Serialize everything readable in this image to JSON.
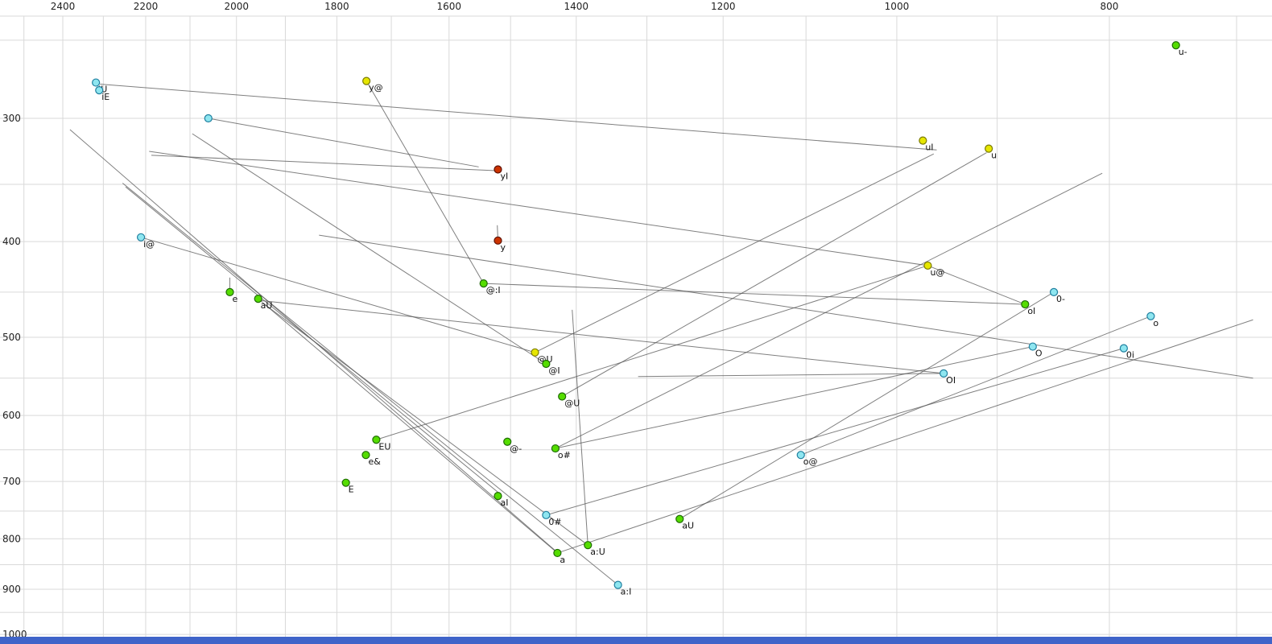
{
  "chart_data": {
    "type": "scatter",
    "title": "",
    "description": "Vowel formant plot (F2 horizontal reversed log scale, F1 vertical reversed log scale) with diphthong trajectory lines",
    "x_axis": {
      "unit": "Hz",
      "scale": "log",
      "reversed": true,
      "ticks": [
        2400,
        2200,
        2000,
        1800,
        1600,
        1400,
        1200,
        1000,
        800
      ],
      "minor_step": 100,
      "minor_min": 700,
      "minor_max": 2500
    },
    "y_axis": {
      "unit": "Hz",
      "scale": "log",
      "reversed": true,
      "ticks": [
        300,
        400,
        500,
        600,
        700,
        800,
        900,
        1000
      ],
      "minor_step": 50,
      "minor_min": 250,
      "minor_max": 1000
    },
    "colors": {
      "green": {
        "fill": "#55dd00",
        "stroke": "#1e6b00"
      },
      "yellow": {
        "fill": "#e6e600",
        "stroke": "#7a7a00"
      },
      "cyan": {
        "fill": "#8ee6f0",
        "stroke": "#1f7f9f"
      },
      "red": {
        "fill": "#cc3300",
        "stroke": "#5c1000"
      }
    },
    "grid_color": "#d9d9d9",
    "line_color": "#555555",
    "label_color": "#111111",
    "tick_color": "#222222",
    "bottom_bar_color": "#3f64c9",
    "points": [
      {
        "label": "u-",
        "f2": 746,
        "f1": 253,
        "color": "green"
      },
      {
        "label": "iU",
        "f2": 2318,
        "f1": 276,
        "color": "cyan"
      },
      {
        "label": "iE",
        "f2": 2310,
        "f1": 281,
        "color": "cyan"
      },
      {
        "label": "y@",
        "f2": 1745,
        "f1": 275,
        "color": "yellow"
      },
      {
        "label": "",
        "f2": 2060,
        "f1": 300,
        "color": "cyan"
      },
      {
        "label": "uI",
        "f2": 973,
        "f1": 316,
        "color": "yellow"
      },
      {
        "label": "u",
        "f2": 908,
        "f1": 322,
        "color": "yellow"
      },
      {
        "label": "yI",
        "f2": 1520,
        "f1": 338,
        "color": "red"
      },
      {
        "label": "i@",
        "f2": 2211,
        "f1": 396,
        "color": "cyan"
      },
      {
        "label": "y",
        "f2": 1520,
        "f1": 399,
        "color": "red"
      },
      {
        "label": "@:I",
        "f2": 1543,
        "f1": 441,
        "color": "green"
      },
      {
        "label": "u@",
        "f2": 968,
        "f1": 423,
        "color": "yellow"
      },
      {
        "label": "0-",
        "f2": 848,
        "f1": 450,
        "color": "cyan"
      },
      {
        "label": "oI",
        "f2": 874,
        "f1": 463,
        "color": "green"
      },
      {
        "label": "o",
        "f2": 766,
        "f1": 476,
        "color": "cyan"
      },
      {
        "label": "e",
        "f2": 2014,
        "f1": 450,
        "color": "green"
      },
      {
        "label": "aU",
        "f2": 1955,
        "f1": 457,
        "color": "green"
      },
      {
        "label": "O",
        "f2": 867,
        "f1": 511,
        "color": "cyan"
      },
      {
        "label": "0i",
        "f2": 788,
        "f1": 513,
        "color": "cyan"
      },
      {
        "label": "@U",
        "f2": 1462,
        "f1": 518,
        "color": "yellow"
      },
      {
        "label": "@I",
        "f2": 1445,
        "f1": 532,
        "color": "green"
      },
      {
        "label": "OI",
        "f2": 952,
        "f1": 544,
        "color": "cyan"
      },
      {
        "label": "@U",
        "f2": 1421,
        "f1": 574,
        "color": "green"
      },
      {
        "label": "EU",
        "f2": 1727,
        "f1": 635,
        "color": "green"
      },
      {
        "label": "@-",
        "f2": 1505,
        "f1": 638,
        "color": "green"
      },
      {
        "label": "o#",
        "f2": 1431,
        "f1": 648,
        "color": "green"
      },
      {
        "label": "e&",
        "f2": 1746,
        "f1": 658,
        "color": "green"
      },
      {
        "label": "E",
        "f2": 1783,
        "f1": 702,
        "color": "green"
      },
      {
        "label": "o@",
        "f2": 1106,
        "f1": 658,
        "color": "cyan"
      },
      {
        "label": "aI",
        "f2": 1520,
        "f1": 724,
        "color": "green"
      },
      {
        "label": "0#",
        "f2": 1445,
        "f1": 757,
        "color": "cyan"
      },
      {
        "label": "aU",
        "f2": 1256,
        "f1": 764,
        "color": "green"
      },
      {
        "label": "a:U",
        "f2": 1383,
        "f1": 812,
        "color": "green"
      },
      {
        "label": "a",
        "f2": 1428,
        "f1": 827,
        "color": "green"
      },
      {
        "label": "a:I",
        "f2": 1340,
        "f1": 891,
        "color": "cyan"
      }
    ],
    "segments": [
      {
        "a": [
          2308,
          277
        ],
        "b": [
          959,
          323
        ]
      },
      {
        "a": [
          2382,
          308
        ],
        "b": [
          1428,
          826
        ]
      },
      {
        "a": [
          2254,
          349
        ],
        "b": [
          1340,
          891
        ]
      },
      {
        "a": [
          2247,
          352
        ],
        "b": [
          1515,
          722
        ]
      },
      {
        "a": [
          2192,
          324
        ],
        "b": [
          968,
          423
        ]
      },
      {
        "a": [
          2187,
          327
        ],
        "b": [
          1523,
          339
        ]
      },
      {
        "a": [
          2060,
          300
        ],
        "b": [
          1551,
          336
        ]
      },
      {
        "a": [
          1745,
          275
        ],
        "b": [
          1543,
          441
        ]
      },
      {
        "a": [
          1406,
          469
        ],
        "b": [
          1383,
          812
        ]
      },
      {
        "a": [
          2014,
          435
        ],
        "b": [
          2014,
          450
        ]
      },
      {
        "a": [
          1521,
          385
        ],
        "b": [
          1520,
          399
        ]
      },
      {
        "a": [
          1428,
          827
        ],
        "b": [
          1955,
          457
        ]
      },
      {
        "a": [
          1383,
          812
        ],
        "b": [
          1942,
          463
        ]
      },
      {
        "a": [
          1106,
          658
        ],
        "b": [
          766,
          476
        ]
      },
      {
        "a": [
          1256,
          764
        ],
        "b": [
          848,
          450
        ]
      },
      {
        "a": [
          1445,
          757
        ],
        "b": [
          788,
          513
        ]
      },
      {
        "a": [
          1431,
          648
        ],
        "b": [
          867,
          511
        ]
      },
      {
        "a": [
          1543,
          441
        ],
        "b": [
          874,
          463
        ]
      },
      {
        "a": [
          1949,
          459
        ],
        "b": [
          952,
          544
        ]
      },
      {
        "a": [
          2211,
          396
        ],
        "b": [
          1462,
          518
        ]
      },
      {
        "a": [
          1727,
          635
        ],
        "b": [
          968,
          423
        ]
      },
      {
        "a": [
          1445,
          532
        ],
        "b": [
          2095,
          311
        ]
      },
      {
        "a": [
          1462,
          518
        ],
        "b": [
          962,
          326
        ]
      },
      {
        "a": [
          1421,
          574
        ],
        "b": [
          910,
          325
        ]
      },
      {
        "a": [
          1312,
          548
        ],
        "b": [
          953,
          544
        ]
      },
      {
        "a": [
          1834,
          394
        ],
        "b": [
          688,
          550
        ]
      },
      {
        "a": [
          1431,
          648
        ],
        "b": [
          806,
          341
        ]
      },
      {
        "a": [
          1428,
          827
        ],
        "b": [
          688,
          480
        ]
      },
      {
        "a": [
          968,
          423
        ],
        "b": [
          874,
          463
        ]
      }
    ]
  }
}
